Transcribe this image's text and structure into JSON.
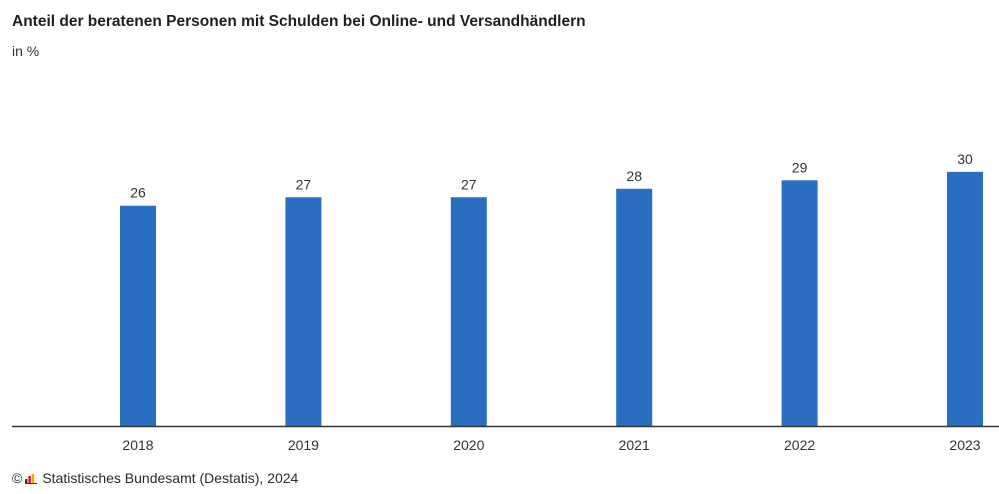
{
  "chart_data": {
    "type": "bar",
    "title": "Anteil der beratenen Personen mit Schulden bei Online- und Versandhändlern",
    "subtitle": "in %",
    "categories": [
      "2018",
      "2019",
      "2020",
      "2021",
      "2022",
      "2023"
    ],
    "values": [
      26,
      27,
      27,
      28,
      29,
      30
    ],
    "value_labels": [
      "26",
      "27",
      "27",
      "28",
      "29",
      "30"
    ],
    "ylim": [
      0,
      36
    ],
    "grid": false,
    "legend": "none",
    "bar_color": "#2a6ec2",
    "axis_color": "#333333"
  },
  "footer": {
    "copyright_symbol": "©",
    "logo_icon": "destatis-logo-icon",
    "source": "Statistisches Bundesamt (Destatis), 2024"
  }
}
